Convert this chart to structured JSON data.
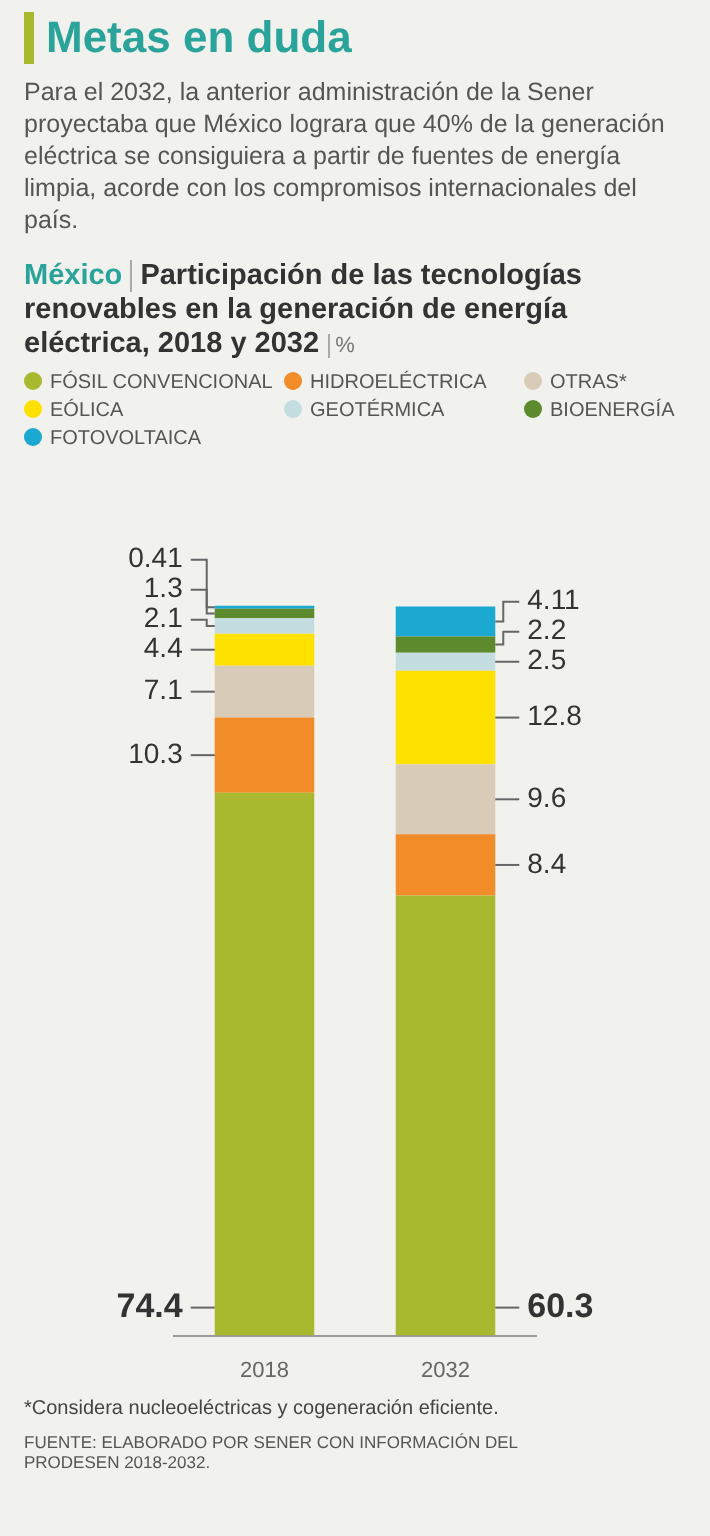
{
  "chart_data": {
    "type": "bar",
    "stacked": true,
    "title": "Metas en duda",
    "subtitle": "Para el 2032, la anterior administración de la Sener proyectaba que México lograra que 40% de la generación eléctrica se consiguiera a partir de fuentes de energía limpia, acorde con los compromisos internacionales del país.",
    "annotations": [
      "México",
      "Participación de las tecnologías renovables en la generación de energía eléctrica, 2018 y 2032",
      "%",
      "*Considera nucleoeléctricas y cogeneración eficiente.",
      "FUENTE: ELABORADO POR SENER CON INFORMACIÓN DEL PRODESEN 2018-2032."
    ],
    "categories": [
      "2018",
      "2032"
    ],
    "series": [
      {
        "name": "FÓSIL CONVENCIONAL",
        "color": "#a9b92f",
        "values": [
          74.4,
          60.3
        ]
      },
      {
        "name": "HIDROELÉCTRICA",
        "color": "#f28c28",
        "values": [
          10.3,
          8.4
        ]
      },
      {
        "name": "OTRAS*",
        "color": "#d8cbb8",
        "values": [
          7.1,
          9.6
        ]
      },
      {
        "name": "EÓLICA",
        "color": "#ffe100",
        "values": [
          4.4,
          12.8
        ]
      },
      {
        "name": "GEOTÉRMICA",
        "color": "#c3dde0",
        "values": [
          2.1,
          2.5
        ]
      },
      {
        "name": "BIOENERGÍA",
        "color": "#5c8a2c",
        "values": [
          1.3,
          2.2
        ]
      },
      {
        "name": "FOTOVOLTAICA",
        "color": "#1ba8d1",
        "values": [
          0.41,
          4.11
        ]
      }
    ],
    "data_labels": true,
    "legend": "top",
    "grid": false,
    "tick_labels": "x"
  }
}
